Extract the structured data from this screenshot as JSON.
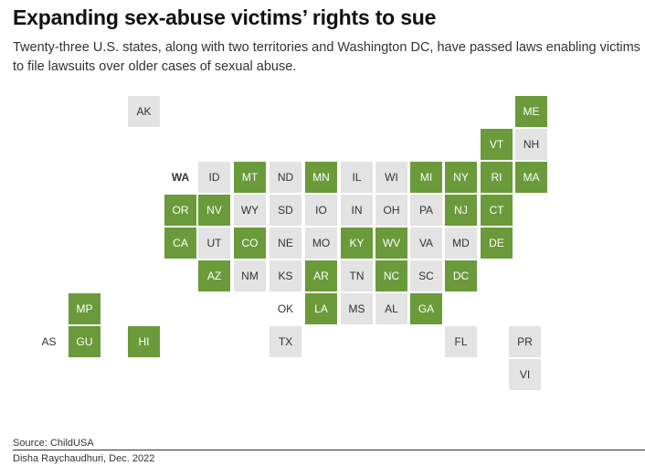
{
  "header": {
    "title": "Expanding sex-abuse victims’ rights to sue",
    "subtitle": "Twenty-three U.S. states, along with two territories and Washington DC, have passed laws enabling victims to file lawsuits over older cases of sexual abuse."
  },
  "colors": {
    "passed": "#6a9a3a",
    "not_passed": "#e3e3e3",
    "text": "#333333"
  },
  "map": {
    "tiles": [
      {
        "code": "AK",
        "passed": false
      },
      {
        "code": "ME",
        "passed": true
      },
      {
        "code": "VT",
        "passed": true
      },
      {
        "code": "NH",
        "passed": false
      },
      {
        "code": "WA",
        "passed": false,
        "style": "plain-bold"
      },
      {
        "code": "ID",
        "passed": false
      },
      {
        "code": "MT",
        "passed": true
      },
      {
        "code": "ND",
        "passed": false
      },
      {
        "code": "MN",
        "passed": true
      },
      {
        "code": "IL",
        "passed": false
      },
      {
        "code": "WI",
        "passed": false
      },
      {
        "code": "MI",
        "passed": true
      },
      {
        "code": "NY",
        "passed": true
      },
      {
        "code": "RI",
        "passed": true
      },
      {
        "code": "MA",
        "passed": true
      },
      {
        "code": "OR",
        "passed": true
      },
      {
        "code": "NV",
        "passed": true
      },
      {
        "code": "WY",
        "passed": false
      },
      {
        "code": "SD",
        "passed": false
      },
      {
        "code": "IO",
        "passed": false
      },
      {
        "code": "IN",
        "passed": false
      },
      {
        "code": "OH",
        "passed": false
      },
      {
        "code": "PA",
        "passed": false
      },
      {
        "code": "NJ",
        "passed": true
      },
      {
        "code": "CT",
        "passed": true
      },
      {
        "code": "CA",
        "passed": true
      },
      {
        "code": "UT",
        "passed": false
      },
      {
        "code": "CO",
        "passed": true
      },
      {
        "code": "NE",
        "passed": false
      },
      {
        "code": "MO",
        "passed": false
      },
      {
        "code": "KY",
        "passed": true
      },
      {
        "code": "WV",
        "passed": true
      },
      {
        "code": "VA",
        "passed": false
      },
      {
        "code": "MD",
        "passed": false
      },
      {
        "code": "DE",
        "passed": true
      },
      {
        "code": "AZ",
        "passed": true
      },
      {
        "code": "NM",
        "passed": false
      },
      {
        "code": "KS",
        "passed": false
      },
      {
        "code": "AR",
        "passed": true
      },
      {
        "code": "TN",
        "passed": false
      },
      {
        "code": "NC",
        "passed": true
      },
      {
        "code": "SC",
        "passed": false
      },
      {
        "code": "DC",
        "passed": true
      },
      {
        "code": "MP",
        "passed": true
      },
      {
        "code": "OK",
        "passed": false,
        "style": "plain"
      },
      {
        "code": "LA",
        "passed": true
      },
      {
        "code": "MS",
        "passed": false
      },
      {
        "code": "AL",
        "passed": false
      },
      {
        "code": "GA",
        "passed": true
      },
      {
        "code": "AS",
        "passed": false,
        "style": "plain"
      },
      {
        "code": "GU",
        "passed": true
      },
      {
        "code": "HI",
        "passed": true
      },
      {
        "code": "TX",
        "passed": false
      },
      {
        "code": "FL",
        "passed": false
      },
      {
        "code": "PR",
        "passed": false
      },
      {
        "code": "VI",
        "passed": false
      }
    ]
  },
  "footer": {
    "source": "Source: ChildUSA",
    "credit": "Disha Raychaudhuri, Dec. 2022"
  }
}
